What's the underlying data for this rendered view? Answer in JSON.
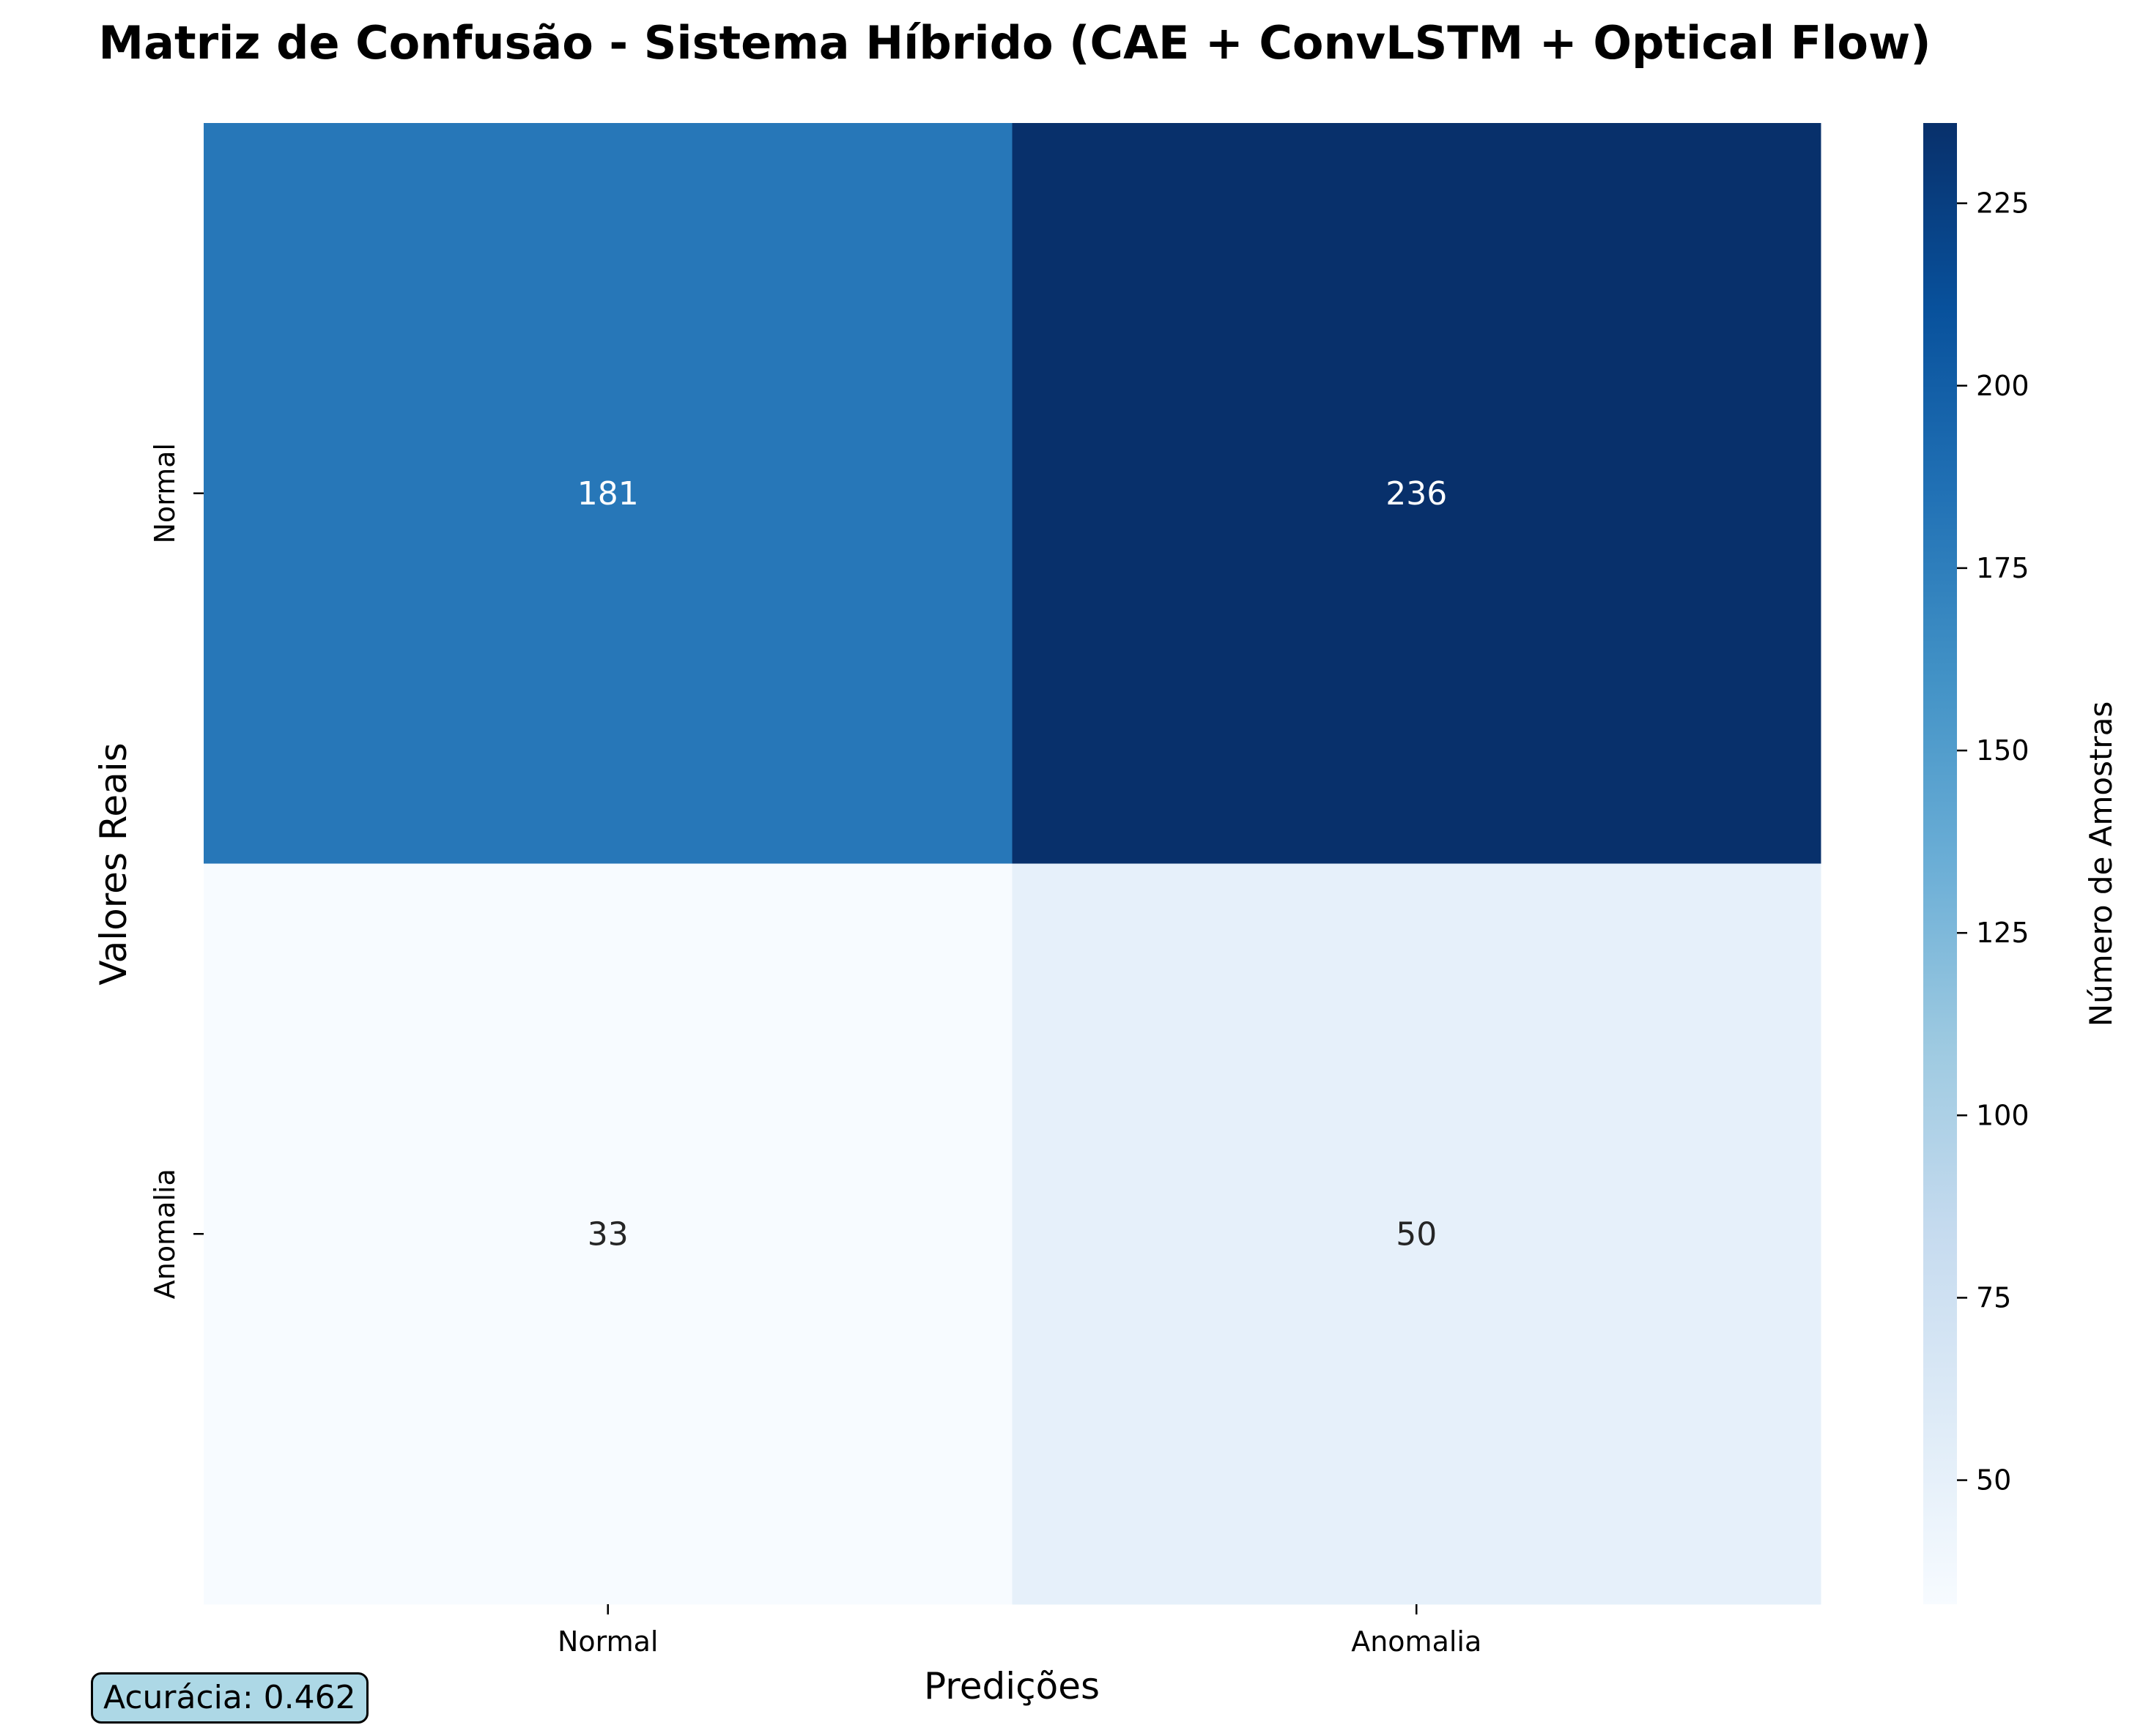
{
  "chart_data": {
    "type": "heatmap",
    "title": "Matriz de Confusão - Sistema Híbrido (CAE + ConvLSTM + Optical Flow)",
    "xlabel": "Predições",
    "ylabel": "Valores Reais",
    "x_categories": [
      "Normal",
      "Anomalia"
    ],
    "y_categories": [
      "Normal",
      "Anomalia"
    ],
    "values": [
      [
        181,
        236
      ],
      [
        33,
        50
      ]
    ],
    "colormap": "Blues",
    "colorbar": {
      "label": "Número de Amostras",
      "min": 33,
      "max": 236,
      "ticks": [
        50,
        75,
        100,
        125,
        150,
        175,
        200,
        225
      ]
    }
  },
  "annotation": {
    "text": "Acurácia: 0.462",
    "background": "#add8e6"
  }
}
